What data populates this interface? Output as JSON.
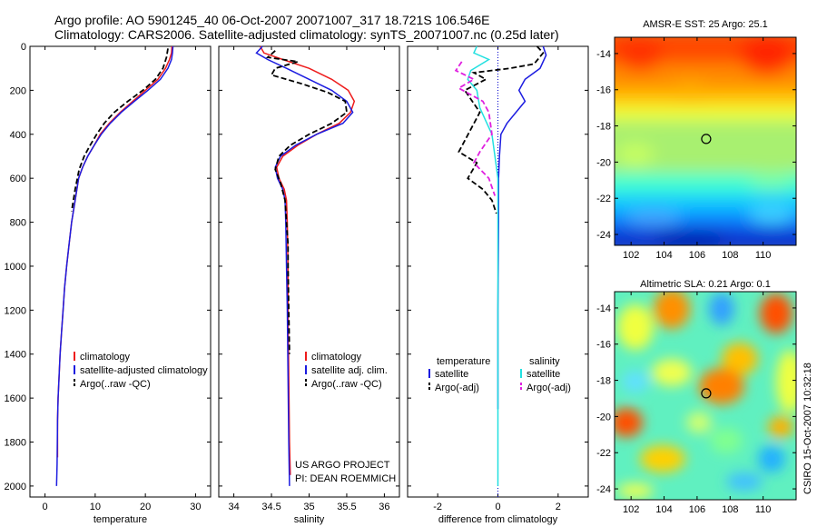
{
  "header": {
    "title_line1": "Argo profile: AO 5901245_40 06-Oct-2007 20071007_317 18.721S 106.546E",
    "title_line2": "Climatology: CARS2006. Satellite-adjusted climatology: synTS_20071007.nc (0.25d later)"
  },
  "side_label": "CSIRO 15-Oct-2007 10:32:18",
  "colors": {
    "red": "#ee1c1c",
    "blue": "#1c1ce0",
    "black": "#000000",
    "cyan": "#22e0e0",
    "magenta": "#e020e0"
  },
  "chart_data": [
    {
      "type": "line",
      "xlabel": "temperature",
      "ylabel": "",
      "xlim": [
        -3,
        33
      ],
      "ylim": [
        2050,
        0
      ],
      "y_reversed": true,
      "xticks": [
        0,
        10,
        20,
        30
      ],
      "yticks": [
        0,
        200,
        400,
        600,
        800,
        1000,
        1200,
        1400,
        1600,
        1800,
        2000
      ],
      "legend_position": "lower-middle",
      "legend": [
        "climatology",
        "satellite-adjusted climatology",
        "Argo(..raw -QC)"
      ],
      "series": [
        {
          "name": "climatology",
          "color": "red",
          "dash": "solid",
          "x": [
            25.3,
            25.2,
            24.8,
            24.0,
            22.5,
            20.0,
            17.5,
            15.0,
            12.8,
            11.0,
            9.8,
            8.5,
            7.5,
            6.7,
            6.0,
            5.3,
            4.8,
            4.3,
            3.9,
            3.6,
            3.3,
            3.0,
            2.8,
            2.6,
            2.5,
            2.5
          ],
          "y": [
            0,
            30,
            60,
            100,
            150,
            200,
            250,
            300,
            350,
            400,
            450,
            500,
            550,
            600,
            700,
            800,
            900,
            1000,
            1100,
            1200,
            1300,
            1400,
            1500,
            1600,
            1700,
            1870
          ]
        },
        {
          "name": "satellite-adjusted climatology",
          "color": "blue",
          "dash": "solid",
          "x": [
            25.5,
            25.4,
            25.2,
            24.5,
            23.0,
            20.5,
            17.8,
            15.2,
            13.0,
            11.2,
            9.8,
            8.5,
            7.5,
            6.7,
            6.0,
            5.3,
            4.8,
            4.3,
            3.9,
            3.6,
            3.3,
            3.0,
            2.8,
            2.6,
            2.5,
            2.4,
            2.3
          ],
          "y": [
            0,
            30,
            60,
            100,
            150,
            200,
            250,
            300,
            350,
            400,
            450,
            500,
            550,
            600,
            700,
            800,
            900,
            1000,
            1100,
            1200,
            1300,
            1400,
            1500,
            1600,
            1700,
            1900,
            2000
          ]
        },
        {
          "name": "Argo(..raw -QC)",
          "color": "black",
          "dash": "dashed",
          "x": [
            24.5,
            24.2,
            23.5,
            22.0,
            19.5,
            16.5,
            13.8,
            11.8,
            10.3,
            9.0,
            7.8,
            6.8,
            6.0,
            5.3
          ],
          "y": [
            10,
            50,
            100,
            150,
            200,
            250,
            300,
            350,
            400,
            450,
            500,
            560,
            650,
            750
          ]
        }
      ]
    },
    {
      "type": "line",
      "xlabel": "salinity",
      "ylabel": "",
      "xlim": [
        33.8,
        36.2
      ],
      "ylim": [
        2050,
        0
      ],
      "y_reversed": true,
      "xticks": [
        34,
        34.5,
        35,
        35.5,
        36
      ],
      "legend_position": "lower-middle",
      "legend": [
        "climatology",
        "satellite adj. clim.",
        "Argo(..raw -QC)"
      ],
      "annotations": [
        "US ARGO PROJECT",
        "PI: DEAN ROEMMICH"
      ],
      "series": [
        {
          "name": "climatology",
          "color": "red",
          "dash": "solid",
          "x": [
            34.35,
            34.4,
            34.65,
            35.0,
            35.3,
            35.52,
            35.6,
            35.55,
            35.4,
            35.1,
            34.85,
            34.65,
            34.57,
            34.6,
            34.67,
            34.7,
            34.71,
            34.72,
            34.72,
            34.73,
            34.74,
            34.75
          ],
          "y": [
            0,
            30,
            60,
            100,
            150,
            200,
            250,
            300,
            350,
            400,
            450,
            500,
            550,
            600,
            650,
            700,
            800,
            1000,
            1200,
            1500,
            1800,
            1950
          ]
        },
        {
          "name": "satellite adj. clim.",
          "color": "blue",
          "dash": "solid",
          "x": [
            34.38,
            34.3,
            34.45,
            34.7,
            35.0,
            35.3,
            35.5,
            35.58,
            35.45,
            35.1,
            34.82,
            34.62,
            34.55,
            34.58,
            34.65,
            34.68,
            34.69,
            34.7,
            34.71,
            34.72,
            34.73,
            34.74
          ],
          "y": [
            0,
            30,
            60,
            100,
            150,
            200,
            250,
            300,
            350,
            400,
            450,
            500,
            550,
            600,
            650,
            700,
            800,
            1000,
            1200,
            1500,
            1800,
            2000
          ]
        },
        {
          "name": "Argo(..raw -QC)",
          "color": "black",
          "dash": "dashed",
          "x": [
            34.55,
            34.45,
            34.85,
            34.55,
            34.5,
            34.9,
            35.25,
            35.48,
            35.5,
            35.3,
            35.0,
            34.75,
            34.6,
            34.55,
            34.62,
            34.68,
            34.7,
            34.72,
            34.72,
            34.73,
            34.74
          ],
          "y": [
            20,
            50,
            70,
            100,
            130,
            170,
            210,
            250,
            300,
            350,
            400,
            450,
            500,
            560,
            620,
            700,
            800,
            900,
            1000,
            1200,
            1400
          ]
        }
      ]
    },
    {
      "type": "line",
      "xlabel": "difference from climatology",
      "ylabel": "",
      "xlim": [
        -3,
        3
      ],
      "ylim": [
        2050,
        0
      ],
      "y_reversed": true,
      "xticks": [
        -2,
        0,
        2
      ],
      "legend_position": "lower-middle",
      "legend_groups": [
        {
          "heading": "temperature",
          "entries": [
            "satellite",
            "Argo(-adj)"
          ]
        },
        {
          "heading": "salinity",
          "entries": [
            "satellite",
            "Argo(-adj)"
          ]
        }
      ],
      "series": [
        {
          "name": "temperature satellite",
          "color": "blue",
          "dash": "solid",
          "x": [
            1.5,
            1.6,
            1.4,
            0.9,
            0.7,
            0.9,
            0.6,
            0.3,
            0.1,
            0.05,
            0.02,
            0.02,
            0.0,
            0.0
          ],
          "y": [
            0,
            40,
            100,
            150,
            200,
            250,
            300,
            350,
            400,
            500,
            600,
            800,
            1200,
            1650
          ]
        },
        {
          "name": "temperature Argo(-adj)",
          "color": "black",
          "dash": "dashed",
          "x": [
            1.3,
            1.5,
            1.2,
            0.4,
            -0.8,
            -0.4,
            -1.1,
            -0.6,
            -1.3,
            -0.7,
            -1.0,
            -0.5,
            -0.2,
            -0.05
          ],
          "y": [
            0,
            30,
            80,
            100,
            120,
            150,
            200,
            300,
            480,
            530,
            600,
            650,
            700,
            760
          ]
        },
        {
          "name": "salinity satellite",
          "color": "cyan",
          "dash": "solid",
          "x": [
            -0.7,
            -0.8,
            -0.3,
            -0.9,
            -1.0,
            -0.7,
            -0.6,
            -0.2,
            0.0,
            0.0,
            0.0,
            0.0,
            0.0
          ],
          "y": [
            0,
            30,
            60,
            110,
            150,
            200,
            280,
            400,
            600,
            800,
            1200,
            1600,
            2000
          ]
        },
        {
          "name": "salinity Argo(-adj)",
          "color": "magenta",
          "dash": "dashed",
          "x": [
            -1.2,
            -1.4,
            -0.8,
            -1.3,
            -0.5,
            -0.3,
            -0.2,
            -0.6,
            -0.8,
            -0.3,
            -0.1
          ],
          "y": [
            70,
            110,
            150,
            190,
            250,
            300,
            400,
            480,
            530,
            600,
            680
          ]
        }
      ]
    },
    {
      "type": "heatmap",
      "title": "AMSR-E SST: 25 Argo: 25.1",
      "xlim": [
        101,
        112
      ],
      "ylim": [
        -24.6,
        -13.1
      ],
      "xticks": [
        102,
        104,
        106,
        108,
        110
      ],
      "yticks": [
        -14,
        -16,
        -18,
        -20,
        -22,
        -24
      ],
      "marker": {
        "x": 106.55,
        "y": -18.72
      }
    },
    {
      "type": "heatmap",
      "title": "Altimetric SLA: 0.21 Argo: 0.1",
      "xlim": [
        101,
        112
      ],
      "ylim": [
        -24.6,
        -13.1
      ],
      "xticks": [
        102,
        104,
        106,
        108,
        110
      ],
      "yticks": [
        -14,
        -16,
        -18,
        -20,
        -22,
        -24
      ],
      "marker": {
        "x": 106.55,
        "y": -18.72
      }
    }
  ]
}
